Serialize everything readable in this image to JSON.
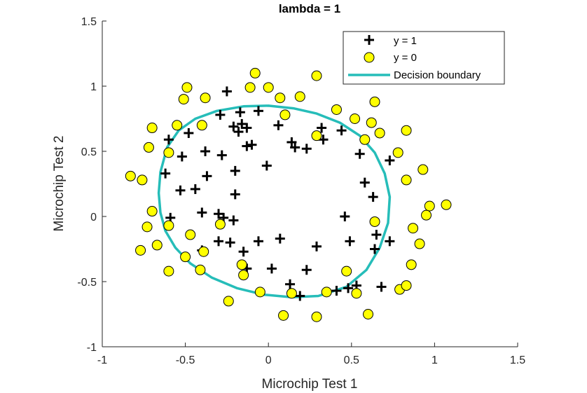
{
  "chart_data": {
    "type": "scatter",
    "title": "lambda = 1",
    "xlabel": "Microchip Test 1",
    "ylabel": "Microchip Test 2",
    "xlim": [
      -1,
      1.5
    ],
    "ylim": [
      -1,
      1.5
    ],
    "xticks": [
      -1,
      -0.5,
      0,
      0.5,
      1,
      1.5
    ],
    "yticks": [
      -1,
      -0.5,
      0,
      0.5,
      1,
      1.5
    ],
    "xtick_labels": [
      "-1",
      "-0.5",
      "0",
      "0.5",
      "1",
      "1.5"
    ],
    "ytick_labels": [
      "-1",
      "-0.5",
      "0",
      "0.5",
      "1",
      "1.5"
    ],
    "grid": false,
    "legend_position": "top-right",
    "colors": {
      "positive_marker": "#000000",
      "negative_fill": "#ffff00",
      "negative_edge": "#000000",
      "boundary": "#26bdb9"
    },
    "series": [
      {
        "name": "y = 1",
        "marker": "plus",
        "points": [
          [
            -0.25,
            0.96
          ],
          [
            -0.29,
            0.78
          ],
          [
            -0.17,
            0.8
          ],
          [
            -0.06,
            0.81
          ],
          [
            -0.21,
            0.69
          ],
          [
            -0.18,
            0.65
          ],
          [
            -0.13,
            0.68
          ],
          [
            -0.16,
            0.71
          ],
          [
            0.06,
            0.7
          ],
          [
            -0.48,
            0.64
          ],
          [
            -0.6,
            0.59
          ],
          [
            -0.38,
            0.5
          ],
          [
            -0.28,
            0.47
          ],
          [
            -0.13,
            0.54
          ],
          [
            -0.1,
            0.55
          ],
          [
            -0.52,
            0.46
          ],
          [
            0.14,
            0.57
          ],
          [
            0.16,
            0.53
          ],
          [
            0.23,
            0.52
          ],
          [
            0.33,
            0.59
          ],
          [
            0.32,
            0.68
          ],
          [
            0.44,
            0.66
          ],
          [
            0.55,
            0.48
          ],
          [
            0.73,
            0.43
          ],
          [
            -0.62,
            0.33
          ],
          [
            -0.37,
            0.31
          ],
          [
            -0.2,
            0.35
          ],
          [
            -0.01,
            0.39
          ],
          [
            -0.53,
            0.2
          ],
          [
            -0.44,
            0.21
          ],
          [
            -0.2,
            0.17
          ],
          [
            0.58,
            0.26
          ],
          [
            0.63,
            0.15
          ],
          [
            -0.59,
            -0.01
          ],
          [
            -0.4,
            0.03
          ],
          [
            -0.3,
            0.02
          ],
          [
            -0.27,
            -0.01
          ],
          [
            -0.21,
            -0.03
          ],
          [
            0.46,
            0.0
          ],
          [
            -0.3,
            -0.19
          ],
          [
            -0.23,
            -0.2
          ],
          [
            -0.06,
            -0.19
          ],
          [
            0.07,
            -0.17
          ],
          [
            0.65,
            -0.14
          ],
          [
            0.73,
            -0.19
          ],
          [
            -0.4,
            -0.26
          ],
          [
            -0.15,
            -0.27
          ],
          [
            0.29,
            -0.23
          ],
          [
            0.49,
            -0.19
          ],
          [
            0.64,
            -0.25
          ],
          [
            -0.13,
            -0.4
          ],
          [
            0.02,
            -0.4
          ],
          [
            0.23,
            -0.41
          ],
          [
            0.13,
            -0.52
          ],
          [
            0.19,
            -0.61
          ],
          [
            0.41,
            -0.57
          ],
          [
            0.48,
            -0.55
          ],
          [
            0.53,
            -0.53
          ],
          [
            0.68,
            -0.54
          ]
        ]
      },
      {
        "name": "y = 0",
        "marker": "circle",
        "points": [
          [
            -0.08,
            1.1
          ],
          [
            0.29,
            1.08
          ],
          [
            -0.49,
            0.99
          ],
          [
            -0.11,
            0.99
          ],
          [
            0.0,
            0.99
          ],
          [
            -0.51,
            0.9
          ],
          [
            -0.38,
            0.91
          ],
          [
            0.07,
            0.91
          ],
          [
            0.19,
            0.92
          ],
          [
            0.64,
            0.88
          ],
          [
            0.41,
            0.82
          ],
          [
            0.1,
            0.78
          ],
          [
            0.52,
            0.75
          ],
          [
            0.62,
            0.72
          ],
          [
            -0.7,
            0.68
          ],
          [
            -0.55,
            0.7
          ],
          [
            -0.4,
            0.7
          ],
          [
            0.67,
            0.64
          ],
          [
            0.83,
            0.66
          ],
          [
            0.58,
            0.59
          ],
          [
            0.29,
            0.62
          ],
          [
            -0.72,
            0.53
          ],
          [
            -0.6,
            0.49
          ],
          [
            0.78,
            0.49
          ],
          [
            -0.83,
            0.31
          ],
          [
            -0.76,
            0.28
          ],
          [
            0.83,
            0.28
          ],
          [
            0.93,
            0.36
          ],
          [
            -0.7,
            0.04
          ],
          [
            0.97,
            0.08
          ],
          [
            1.07,
            0.09
          ],
          [
            0.95,
            0.01
          ],
          [
            -0.6,
            -0.07
          ],
          [
            -0.73,
            -0.08
          ],
          [
            -0.29,
            -0.06
          ],
          [
            0.64,
            -0.04
          ],
          [
            0.87,
            -0.09
          ],
          [
            -0.77,
            -0.26
          ],
          [
            -0.67,
            -0.22
          ],
          [
            -0.47,
            -0.14
          ],
          [
            -0.39,
            -0.27
          ],
          [
            0.91,
            -0.21
          ],
          [
            -0.5,
            -0.31
          ],
          [
            -0.16,
            -0.37
          ],
          [
            0.47,
            -0.42
          ],
          [
            -0.6,
            -0.42
          ],
          [
            -0.41,
            -0.41
          ],
          [
            -0.15,
            -0.45
          ],
          [
            0.86,
            -0.37
          ],
          [
            -0.05,
            -0.58
          ],
          [
            0.35,
            -0.58
          ],
          [
            0.14,
            -0.59
          ],
          [
            0.53,
            -0.59
          ],
          [
            0.79,
            -0.56
          ],
          [
            0.83,
            -0.53
          ],
          [
            -0.24,
            -0.65
          ],
          [
            0.09,
            -0.76
          ],
          [
            0.29,
            -0.77
          ],
          [
            0.6,
            -0.75
          ]
        ]
      },
      {
        "name": "Decision boundary",
        "marker": "line",
        "points": [
          [
            -0.65,
            0.34
          ],
          [
            -0.61,
            0.53
          ],
          [
            -0.54,
            0.66
          ],
          [
            -0.44,
            0.75
          ],
          [
            -0.31,
            0.81
          ],
          [
            -0.15,
            0.845
          ],
          [
            0.0,
            0.85
          ],
          [
            0.15,
            0.83
          ],
          [
            0.29,
            0.79
          ],
          [
            0.43,
            0.72
          ],
          [
            0.55,
            0.62
          ],
          [
            0.64,
            0.49
          ],
          [
            0.7,
            0.33
          ],
          [
            0.73,
            0.15
          ],
          [
            0.72,
            -0.05
          ],
          [
            0.67,
            -0.24
          ],
          [
            0.59,
            -0.41
          ],
          [
            0.47,
            -0.54
          ],
          [
            0.3,
            -0.61
          ],
          [
            0.14,
            -0.62
          ],
          [
            -0.03,
            -0.6
          ],
          [
            -0.19,
            -0.55
          ],
          [
            -0.34,
            -0.47
          ],
          [
            -0.47,
            -0.36
          ],
          [
            -0.56,
            -0.24
          ],
          [
            -0.62,
            -0.11
          ],
          [
            -0.65,
            0.03
          ],
          [
            -0.66,
            0.18
          ],
          [
            -0.65,
            0.34
          ]
        ]
      }
    ]
  }
}
